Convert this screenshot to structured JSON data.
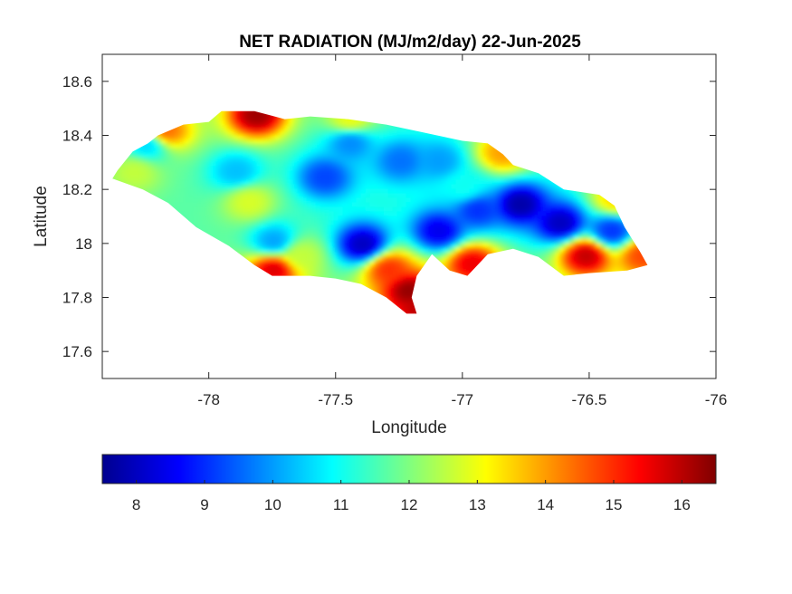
{
  "chart_data": {
    "type": "heatmap",
    "title": "NET RADIATION (MJ/m2/day) 22-Jun-2025",
    "xlabel": "Longitude",
    "ylabel": "Latitude",
    "xlim": [
      -78.42,
      -76.0
    ],
    "ylim": [
      17.5,
      18.7
    ],
    "x_ticks": [
      -78,
      -77.5,
      -77,
      -76.5,
      -76
    ],
    "x_tick_labels": [
      "-78",
      "-77.5",
      "-77",
      "-76.5",
      "-76"
    ],
    "y_ticks": [
      17.6,
      17.8,
      18,
      18.2,
      18.4,
      18.6
    ],
    "y_tick_labels": [
      "17.6",
      "17.8",
      "18",
      "18.2",
      "18.4",
      "18.6"
    ],
    "grid": false,
    "colormap": "jet",
    "clim": [
      7.5,
      16.5
    ],
    "colorbar": {
      "location": "bottom",
      "ticks": [
        8,
        9,
        10,
        11,
        12,
        13,
        14,
        15,
        16
      ],
      "tick_labels": [
        "8",
        "9",
        "10",
        "11",
        "12",
        "13",
        "14",
        "15",
        "16"
      ]
    },
    "region_outline": [
      [
        -78.36,
        18.27
      ],
      [
        -78.3,
        18.34
      ],
      [
        -78.24,
        18.37
      ],
      [
        -78.2,
        18.4
      ],
      [
        -78.1,
        18.44
      ],
      [
        -78.0,
        18.45
      ],
      [
        -77.95,
        18.49
      ],
      [
        -77.82,
        18.49
      ],
      [
        -77.7,
        18.46
      ],
      [
        -77.6,
        18.47
      ],
      [
        -77.45,
        18.46
      ],
      [
        -77.3,
        18.44
      ],
      [
        -77.15,
        18.41
      ],
      [
        -77.0,
        18.38
      ],
      [
        -76.9,
        18.37
      ],
      [
        -76.84,
        18.33
      ],
      [
        -76.8,
        18.29
      ],
      [
        -76.7,
        18.26
      ],
      [
        -76.6,
        18.2
      ],
      [
        -76.46,
        18.18
      ],
      [
        -76.4,
        18.14
      ],
      [
        -76.36,
        18.06
      ],
      [
        -76.3,
        17.97
      ],
      [
        -76.27,
        17.92
      ],
      [
        -76.35,
        17.9
      ],
      [
        -76.5,
        17.89
      ],
      [
        -76.6,
        17.88
      ],
      [
        -76.7,
        17.95
      ],
      [
        -76.8,
        17.98
      ],
      [
        -76.9,
        17.96
      ],
      [
        -76.98,
        17.88
      ],
      [
        -77.05,
        17.9
      ],
      [
        -77.12,
        17.96
      ],
      [
        -77.18,
        17.88
      ],
      [
        -77.2,
        17.8
      ],
      [
        -77.18,
        17.74
      ],
      [
        -77.22,
        17.74
      ],
      [
        -77.3,
        17.8
      ],
      [
        -77.4,
        17.85
      ],
      [
        -77.5,
        17.87
      ],
      [
        -77.6,
        17.88
      ],
      [
        -77.75,
        17.88
      ],
      [
        -77.82,
        17.92
      ],
      [
        -77.92,
        17.99
      ],
      [
        -78.05,
        18.06
      ],
      [
        -78.16,
        18.15
      ],
      [
        -78.26,
        18.2
      ],
      [
        -78.38,
        18.24
      ]
    ],
    "value_field": {
      "base": 11.6,
      "features": [
        {
          "lon": -77.82,
          "lat": 18.47,
          "value": 16.3
        },
        {
          "lon": -78.18,
          "lat": 18.41,
          "value": 14.5
        },
        {
          "lon": -77.45,
          "lat": 18.45,
          "value": 13.0
        },
        {
          "lon": -78.3,
          "lat": 18.26,
          "value": 12.6
        },
        {
          "lon": -77.85,
          "lat": 18.15,
          "value": 12.8
        },
        {
          "lon": -78.25,
          "lat": 18.36,
          "value": 10.5
        },
        {
          "lon": -77.9,
          "lat": 18.26,
          "value": 10.3
        },
        {
          "lon": -77.55,
          "lat": 18.24,
          "value": 9.2
        },
        {
          "lon": -77.45,
          "lat": 18.37,
          "value": 9.8
        },
        {
          "lon": -77.25,
          "lat": 18.3,
          "value": 9.6
        },
        {
          "lon": -77.1,
          "lat": 18.3,
          "value": 10.0
        },
        {
          "lon": -77.4,
          "lat": 17.99,
          "value": 8.0
        },
        {
          "lon": -77.1,
          "lat": 18.04,
          "value": 8.4
        },
        {
          "lon": -76.95,
          "lat": 18.12,
          "value": 9.0
        },
        {
          "lon": -76.78,
          "lat": 18.14,
          "value": 7.8
        },
        {
          "lon": -76.62,
          "lat": 18.07,
          "value": 8.0
        },
        {
          "lon": -76.42,
          "lat": 18.04,
          "value": 9.0
        },
        {
          "lon": -77.75,
          "lat": 18.0,
          "value": 10.0
        },
        {
          "lon": -77.22,
          "lat": 17.82,
          "value": 16.4
        },
        {
          "lon": -77.3,
          "lat": 17.9,
          "value": 15.0
        },
        {
          "lon": -76.97,
          "lat": 17.92,
          "value": 15.6
        },
        {
          "lon": -76.52,
          "lat": 17.95,
          "value": 16.0
        },
        {
          "lon": -76.3,
          "lat": 17.95,
          "value": 14.8
        },
        {
          "lon": -77.75,
          "lat": 17.9,
          "value": 15.8
        },
        {
          "lon": -76.85,
          "lat": 18.33,
          "value": 14.0
        },
        {
          "lon": -76.4,
          "lat": 18.16,
          "value": 13.5
        },
        {
          "lon": -77.0,
          "lat": 18.2,
          "value": 11.0
        },
        {
          "lon": -77.65,
          "lat": 17.95,
          "value": 12.6
        },
        {
          "lon": -77.18,
          "lat": 17.75,
          "value": 16.0
        }
      ]
    }
  }
}
